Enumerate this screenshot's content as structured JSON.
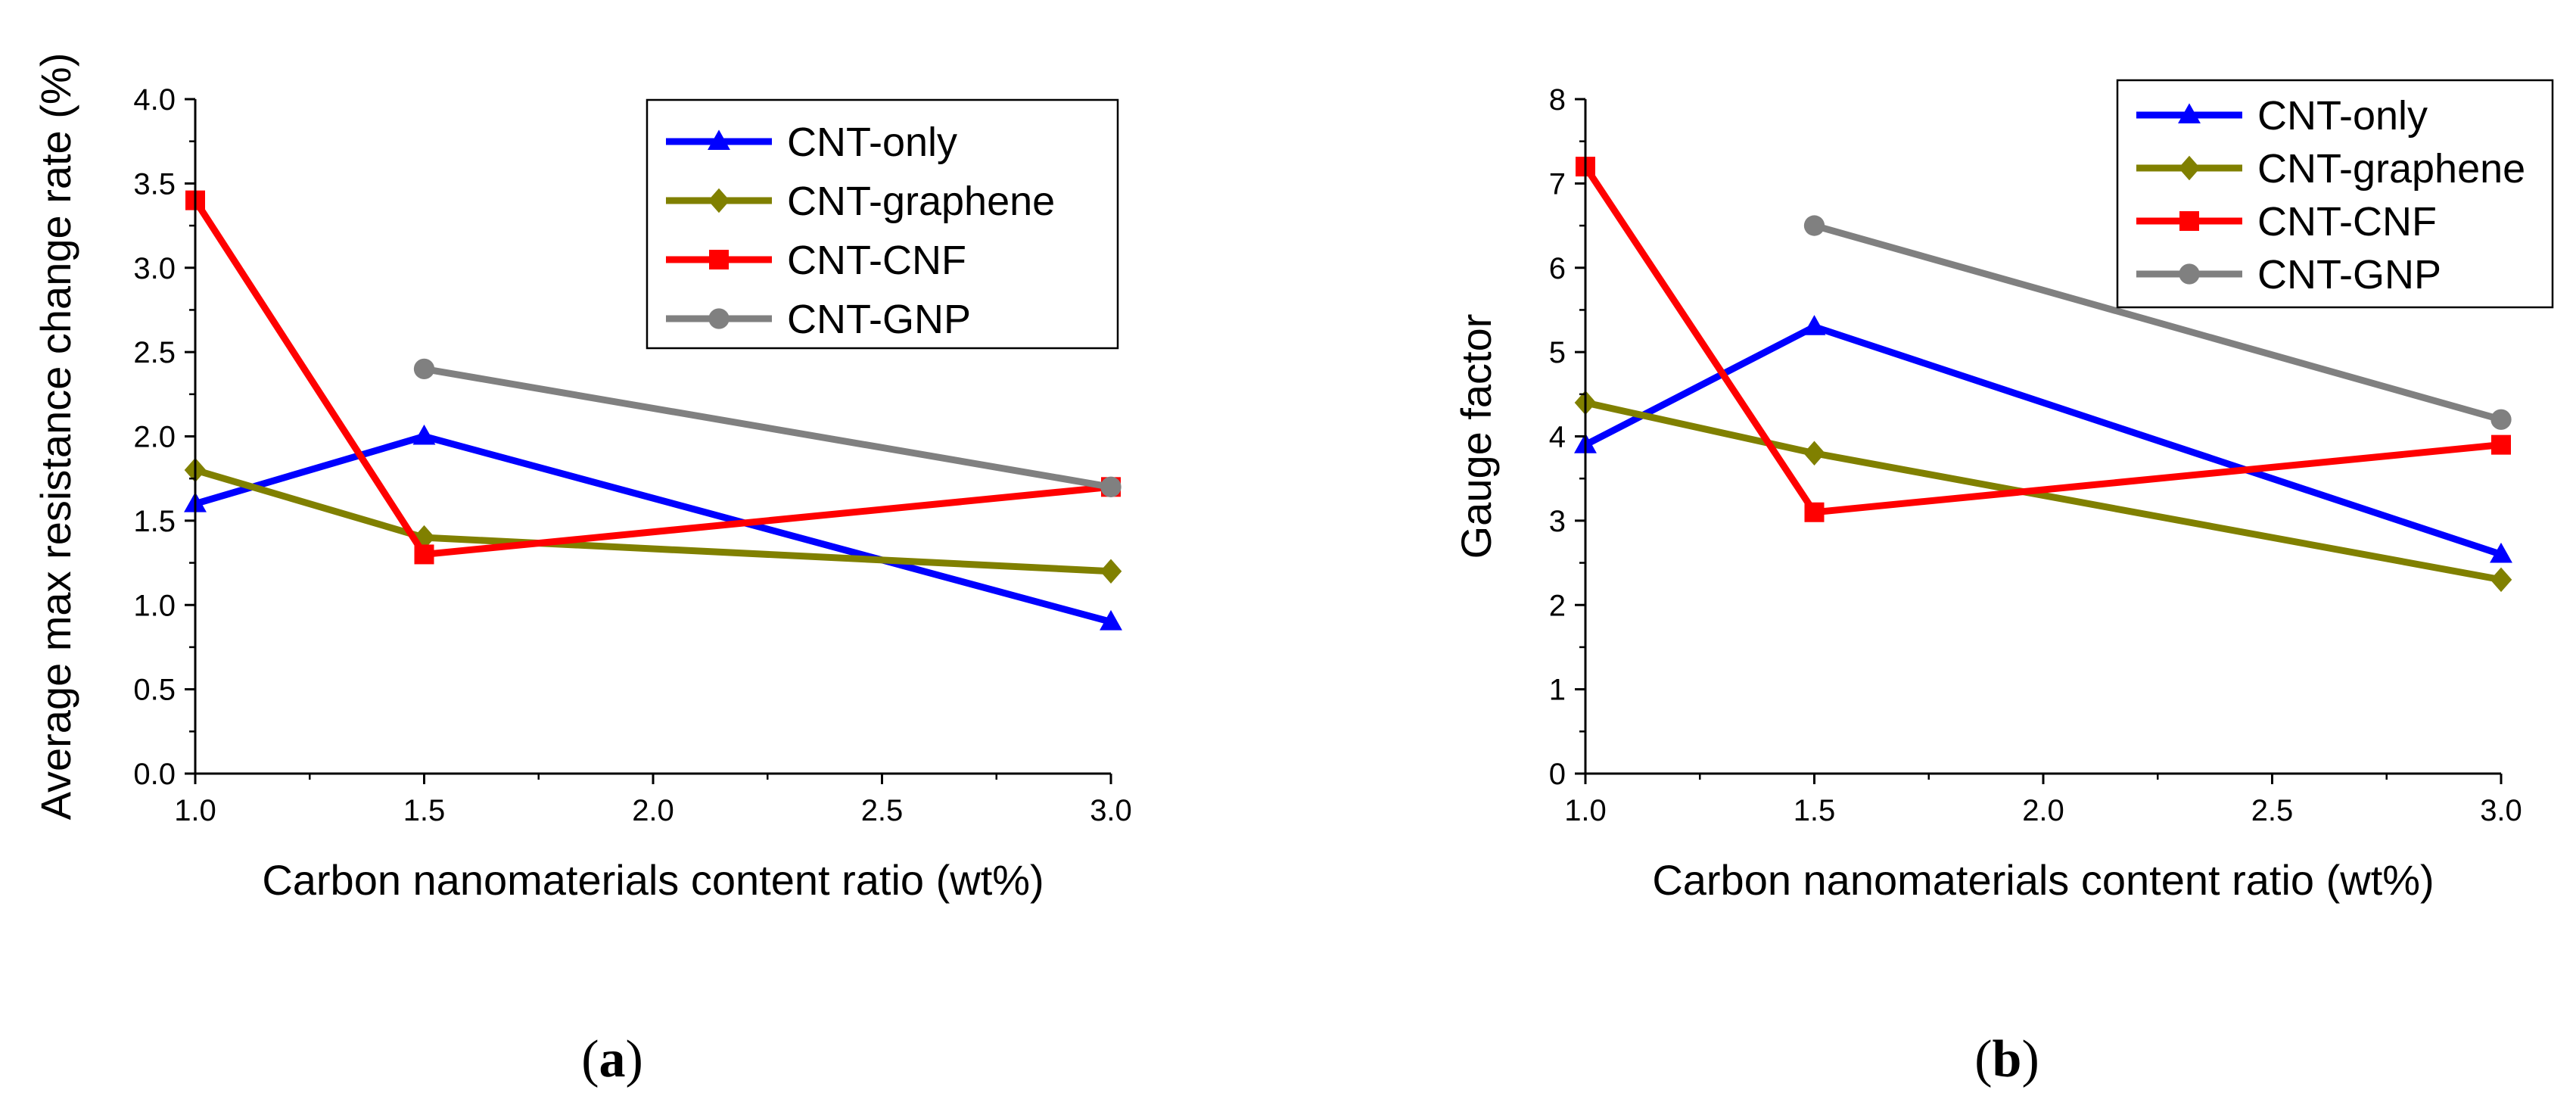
{
  "chart_data": [
    {
      "type": "line",
      "panel_label": "a",
      "xlabel": "Carbon nanomaterials content ratio (wt%)",
      "ylabel": "Average max resistance change rate (%)",
      "xlim": [
        1.0,
        3.0
      ],
      "ylim": [
        0.0,
        4.0
      ],
      "x_ticks": [
        "1.0",
        "1.5",
        "2.0",
        "2.5",
        "3.0"
      ],
      "y_ticks": [
        "0.0",
        "0.5",
        "1.0",
        "1.5",
        "2.0",
        "2.5",
        "3.0",
        "3.5",
        "4.0"
      ],
      "legend_position": "top-right",
      "series": [
        {
          "name": "CNT-only",
          "color": "#0000ff",
          "marker": "triangle",
          "x": [
            1.0,
            1.5,
            3.0
          ],
          "values": [
            1.6,
            2.0,
            0.9
          ]
        },
        {
          "name": "CNT-graphene",
          "color": "#808000",
          "marker": "diamond",
          "x": [
            1.0,
            1.5,
            3.0
          ],
          "values": [
            1.8,
            1.4,
            1.2
          ]
        },
        {
          "name": "CNT-CNF",
          "color": "#ff0000",
          "marker": "square",
          "x": [
            1.0,
            1.5,
            3.0
          ],
          "values": [
            3.4,
            1.3,
            1.7
          ]
        },
        {
          "name": "CNT-GNP",
          "color": "#808080",
          "marker": "circle",
          "x": [
            1.5,
            3.0
          ],
          "values": [
            2.4,
            1.7
          ]
        }
      ]
    },
    {
      "type": "line",
      "panel_label": "b",
      "xlabel": "Carbon nanomaterials content ratio (wt%)",
      "ylabel": "Gauge factor",
      "xlim": [
        1.0,
        3.0
      ],
      "ylim": [
        0,
        8
      ],
      "x_ticks": [
        "1.0",
        "1.5",
        "2.0",
        "2.5",
        "3.0"
      ],
      "y_ticks": [
        "0",
        "1",
        "2",
        "3",
        "4",
        "5",
        "6",
        "7",
        "8"
      ],
      "legend_position": "top-right",
      "series": [
        {
          "name": "CNT-only",
          "color": "#0000ff",
          "marker": "triangle",
          "x": [
            1.0,
            1.5,
            3.0
          ],
          "values": [
            3.9,
            5.3,
            2.6
          ]
        },
        {
          "name": "CNT-graphene",
          "color": "#808000",
          "marker": "diamond",
          "x": [
            1.0,
            1.5,
            3.0
          ],
          "values": [
            4.4,
            3.8,
            2.3
          ]
        },
        {
          "name": "CNT-CNF",
          "color": "#ff0000",
          "marker": "square",
          "x": [
            1.0,
            1.5,
            3.0
          ],
          "values": [
            7.2,
            3.1,
            3.9
          ]
        },
        {
          "name": "CNT-GNP",
          "color": "#808080",
          "marker": "circle",
          "x": [
            1.5,
            3.0
          ],
          "values": [
            6.5,
            4.2
          ]
        }
      ]
    }
  ]
}
